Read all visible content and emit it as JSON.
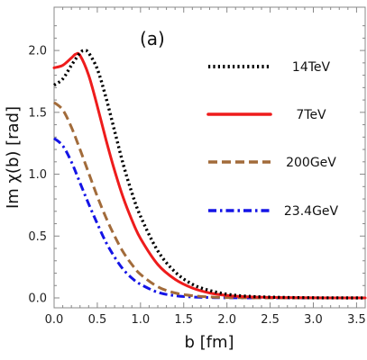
{
  "chart_data": {
    "type": "line",
    "panel_label": "(a)",
    "xlabel": "b [fm]",
    "ylabel": "Im χ(b) [rad]",
    "xlim": [
      0,
      3.6
    ],
    "ylim": [
      -0.08,
      2.35
    ],
    "x_ticks": [
      "0.0",
      "0.5",
      "1.0",
      "1.5",
      "2.0",
      "2.5",
      "3.0",
      "3.5"
    ],
    "y_ticks": [
      "0.0",
      "0.5",
      "1.0",
      "1.5",
      "2.0"
    ],
    "grid": false,
    "legend_position": "right",
    "series": [
      {
        "name": "14TeV",
        "color": "#000000",
        "dash": "dotted",
        "x": [
          0,
          0.1,
          0.2,
          0.3,
          0.35,
          0.4,
          0.5,
          0.6,
          0.7,
          0.8,
          0.9,
          1.0,
          1.2,
          1.4,
          1.6,
          1.8,
          2.0,
          2.2,
          2.5,
          3.0,
          3.5,
          3.6
        ],
        "y": [
          1.72,
          1.77,
          1.88,
          1.98,
          2.0,
          1.98,
          1.85,
          1.62,
          1.35,
          1.08,
          0.85,
          0.66,
          0.38,
          0.21,
          0.11,
          0.06,
          0.03,
          0.015,
          0.006,
          0.001,
          0.0,
          0.0
        ]
      },
      {
        "name": "7TeV",
        "color": "#ee1c1c",
        "dash": "solid",
        "x": [
          0,
          0.1,
          0.2,
          0.25,
          0.3,
          0.4,
          0.5,
          0.6,
          0.7,
          0.8,
          0.9,
          1.0,
          1.2,
          1.4,
          1.6,
          1.8,
          2.0,
          2.2,
          2.5,
          3.0,
          3.5,
          3.6
        ],
        "y": [
          1.86,
          1.88,
          1.94,
          1.97,
          1.96,
          1.8,
          1.55,
          1.28,
          1.03,
          0.81,
          0.63,
          0.48,
          0.27,
          0.15,
          0.08,
          0.04,
          0.02,
          0.01,
          0.004,
          0.001,
          0.0,
          0.0
        ]
      },
      {
        "name": "200GeV",
        "color": "#a26b3a",
        "dash": "dashed",
        "x": [
          0,
          0.1,
          0.2,
          0.3,
          0.4,
          0.5,
          0.6,
          0.7,
          0.8,
          0.9,
          1.0,
          1.2,
          1.4,
          1.6,
          1.8,
          2.0,
          2.2,
          2.5,
          3.0,
          3.5,
          3.6
        ],
        "y": [
          1.58,
          1.52,
          1.38,
          1.2,
          1.01,
          0.82,
          0.65,
          0.5,
          0.37,
          0.27,
          0.19,
          0.09,
          0.04,
          0.018,
          0.008,
          0.003,
          0.001,
          0.0,
          0.0,
          0.0,
          0.0
        ]
      },
      {
        "name": "23.4GeV",
        "color": "#1414e6",
        "dash": "dashdot",
        "x": [
          0,
          0.1,
          0.2,
          0.3,
          0.4,
          0.5,
          0.6,
          0.7,
          0.8,
          0.9,
          1.0,
          1.2,
          1.4,
          1.6,
          1.8,
          2.0,
          2.5,
          3.0,
          3.5,
          3.6
        ],
        "y": [
          1.29,
          1.23,
          1.1,
          0.93,
          0.76,
          0.6,
          0.45,
          0.33,
          0.23,
          0.16,
          0.11,
          0.045,
          0.018,
          0.007,
          0.003,
          0.001,
          0.0,
          0.0,
          0.0,
          0.0
        ]
      }
    ]
  }
}
